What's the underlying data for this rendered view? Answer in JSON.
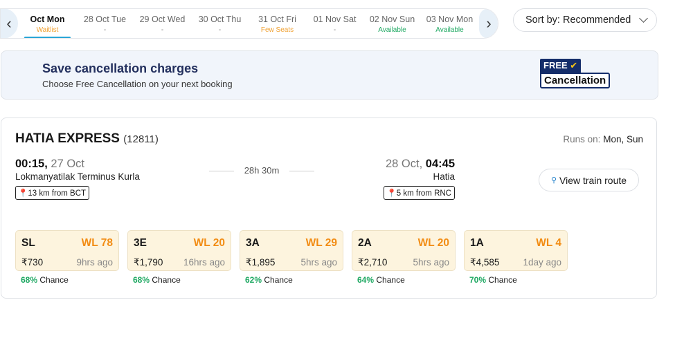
{
  "dates": [
    {
      "date": "Oct Mon",
      "status": "Waitlist",
      "status_color": "#f0a030",
      "active": true
    },
    {
      "date": "28 Oct Tue",
      "status": "-",
      "status_color": "#777777"
    },
    {
      "date": "29 Oct Wed",
      "status": "-",
      "status_color": "#777777"
    },
    {
      "date": "30 Oct Thu",
      "status": "-",
      "status_color": "#777777"
    },
    {
      "date": "31 Oct Fri",
      "status": "Few Seats",
      "status_color": "#f0a030"
    },
    {
      "date": "01 Nov Sat",
      "status": "-",
      "status_color": "#777777"
    },
    {
      "date": "02 Nov Sun",
      "status": "Available",
      "status_color": "#1ea862"
    },
    {
      "date": "03 Nov Mon",
      "status": "Available",
      "status_color": "#1ea862"
    }
  ],
  "sort": {
    "label": "Sort by: Recommended"
  },
  "banner": {
    "title": "Save cancellation charges",
    "subtitle": "Choose Free Cancellation on your next booking",
    "badge_top": "FREE",
    "badge_bottom": "Cancellation"
  },
  "train": {
    "name": "HATIA EXPRESS",
    "number": "(12811)",
    "runs_label": "Runs on:",
    "runs_days": "Mon, Sun",
    "dep_time": "00:15,",
    "dep_date": "27 Oct",
    "dep_station": "Lokmanyatilak Terminus Kurla",
    "dep_tag": "13 km from BCT",
    "duration": "28h 30m",
    "arr_date": "28 Oct,",
    "arr_time": "04:45",
    "arr_station": "Hatia",
    "arr_tag": "5 km from RNC",
    "route_label": "View train route"
  },
  "classes": [
    {
      "class": "SL",
      "wl": "WL 78",
      "price": "₹730",
      "updated": "9hrs ago",
      "chance": "68%",
      "chance_label": "Chance"
    },
    {
      "class": "3E",
      "wl": "WL 20",
      "price": "₹1,790",
      "updated": "16hrs ago",
      "chance": "68%",
      "chance_label": "Chance"
    },
    {
      "class": "3A",
      "wl": "WL 29",
      "price": "₹1,895",
      "updated": "5hrs ago",
      "chance": "62%",
      "chance_label": "Chance"
    },
    {
      "class": "2A",
      "wl": "WL 20",
      "price": "₹2,710",
      "updated": "5hrs ago",
      "chance": "64%",
      "chance_label": "Chance"
    },
    {
      "class": "1A",
      "wl": "WL 4",
      "price": "₹4,585",
      "updated": "1day ago",
      "chance": "70%",
      "chance_label": "Chance"
    }
  ]
}
